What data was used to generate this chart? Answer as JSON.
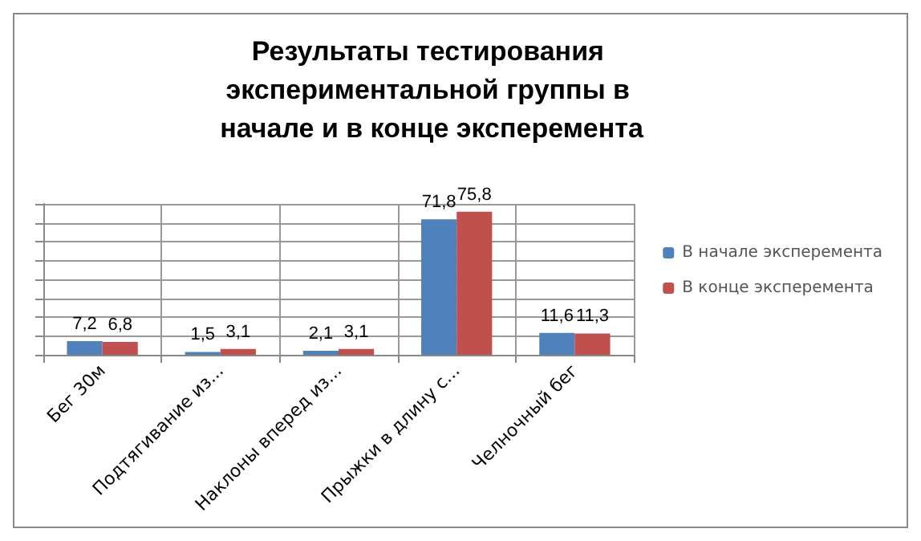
{
  "chart_data": {
    "type": "bar",
    "title": "Результаты тестирования экспериментальной группы в начале и в конце эксперемента",
    "categories": [
      "Бег 30м",
      "Подтягивание из...",
      "Наклоны вперед из...",
      "Прыжки в длину с...",
      "Челночный бег"
    ],
    "series": [
      {
        "name": "В начале эксперемента",
        "color": "#4f81bd",
        "values": [
          7.2,
          1.5,
          2.1,
          71.8,
          11.6
        ],
        "value_labels": [
          "7,2",
          "1,5",
          "2,1",
          "71,8",
          "11,6"
        ]
      },
      {
        "name": "В конце эксперемента",
        "color": "#c0504d",
        "values": [
          6.8,
          3.1,
          3.1,
          75.8,
          11.3
        ],
        "value_labels": [
          "6,8",
          "3,1",
          "3,1",
          "75,8",
          "11,3"
        ]
      }
    ],
    "ylim": [
      0,
      80
    ],
    "yticks": [
      {
        "value": 0,
        "label": null
      },
      {
        "value": 10,
        "label": null
      },
      {
        "value": 20,
        "label": null
      },
      {
        "value": 30,
        "label": null
      },
      {
        "value": 40,
        "label": null
      },
      {
        "value": 50,
        "label": null
      },
      {
        "value": 60,
        "label": null
      },
      {
        "value": 70,
        "label": null
      },
      {
        "value": 80,
        "label": null
      }
    ],
    "tick_labels": "x",
    "grid": true,
    "legend": "right"
  }
}
